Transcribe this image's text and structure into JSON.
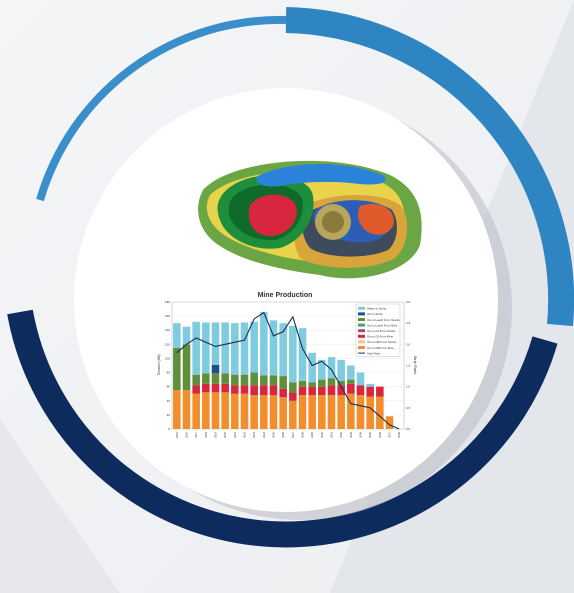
{
  "colors": {
    "ring_outer": "#2f85c2",
    "ring_inner": "#0d2b5c",
    "disk": "#ffffff",
    "waste": "#7fcbe0",
    "ore_stock": "#1f4e8c",
    "leach_stocks": "#5f8f3a",
    "leach_mine": "#4aa36a",
    "gil_stocks": "#a54a7a",
    "gil_mine": "#d7263d",
    "mill_stocks": "#f3c08c",
    "mill_mine": "#f28e2b",
    "strip": "#1f2d5a"
  },
  "image": {
    "name": "Mine pit terrain model"
  },
  "chart_data": {
    "type": "bar",
    "title": "Mine Production",
    "ylabel": "Tonnes (Mt)",
    "y2label": "Strip Ratio",
    "ylim": [
      0,
      180
    ],
    "y2lim": [
      0,
      3.0
    ],
    "yticks": [
      "0",
      "20",
      "40",
      "60",
      "80",
      "100",
      "120",
      "140",
      "160",
      "180"
    ],
    "y2ticks": [
      "0.0",
      "0.5",
      "1.0",
      "1.5",
      "2.0",
      "2.5",
      "3.0"
    ],
    "categories": [
      "2015",
      "2016",
      "2017",
      "2018",
      "2019",
      "2020",
      "2021",
      "2022",
      "2023",
      "2024",
      "2025",
      "2026",
      "2027",
      "2028",
      "2029",
      "2030",
      "2031",
      "2032",
      "2033",
      "2034",
      "2035",
      "2036",
      "2037",
      "2038"
    ],
    "series": [
      {
        "name": "Ore to Mill From Mine",
        "key": "mill_mine",
        "values": [
          55,
          55,
          50,
          52,
          52,
          52,
          50,
          50,
          48,
          48,
          48,
          45,
          40,
          48,
          48,
          48,
          48,
          48,
          50,
          48,
          46,
          46,
          18,
          0
        ]
      },
      {
        "name": "Ore to Mill From Stocks",
        "key": "mill_stocks",
        "values": [
          0,
          0,
          0,
          0,
          0,
          0,
          0,
          0,
          0,
          0,
          0,
          0,
          0,
          0,
          0,
          0,
          0,
          0,
          0,
          0,
          0,
          0,
          0,
          0
        ]
      },
      {
        "name": "Ore to Gil From Mine",
        "key": "gil_mine",
        "values": [
          0,
          0,
          12,
          12,
          12,
          12,
          12,
          12,
          14,
          14,
          14,
          12,
          12,
          12,
          12,
          12,
          14,
          14,
          14,
          14,
          14,
          14,
          0,
          0
        ]
      },
      {
        "name": "Ore to Gil From Stocks",
        "key": "gil_stocks",
        "values": [
          0,
          0,
          0,
          0,
          0,
          0,
          0,
          0,
          0,
          0,
          0,
          0,
          0,
          0,
          0,
          0,
          0,
          0,
          0,
          0,
          0,
          0,
          0,
          0
        ]
      },
      {
        "name": "Ore to Leach From Mine",
        "key": "leach_mine",
        "values": [
          0,
          0,
          0,
          0,
          0,
          0,
          0,
          0,
          0,
          0,
          0,
          0,
          0,
          0,
          0,
          0,
          0,
          0,
          0,
          0,
          0,
          0,
          0,
          0
        ]
      },
      {
        "name": "Ore to Leach From Stocks",
        "key": "leach_stocks",
        "values": [
          60,
          65,
          15,
          15,
          15,
          15,
          15,
          15,
          18,
          14,
          14,
          18,
          14,
          8,
          6,
          10,
          10,
          6,
          6,
          0,
          0,
          0,
          0,
          0
        ]
      },
      {
        "name": "Ore to Stock",
        "key": "ore_stock",
        "values": [
          0,
          0,
          0,
          0,
          12,
          0,
          0,
          0,
          0,
          0,
          0,
          0,
          0,
          0,
          0,
          0,
          0,
          0,
          0,
          0,
          0,
          0,
          0,
          0
        ]
      },
      {
        "name": "Waste to Dump",
        "key": "waste",
        "values": [
          35,
          25,
          75,
          72,
          60,
          72,
          73,
          74,
          72,
          90,
          78,
          75,
          80,
          75,
          42,
          28,
          30,
          30,
          20,
          18,
          4,
          0,
          0,
          0
        ]
      }
    ],
    "line_series": {
      "name": "Strip Ratio",
      "key": "strip",
      "values": [
        1.8,
        2.0,
        2.15,
        2.05,
        1.95,
        2.0,
        2.05,
        2.1,
        2.6,
        2.75,
        2.2,
        2.3,
        2.65,
        1.9,
        1.5,
        1.6,
        1.4,
        1.0,
        0.6,
        0.55,
        0.5,
        0.3,
        0.1,
        0.0
      ]
    },
    "legend_position": "top-right",
    "grid": true
  }
}
